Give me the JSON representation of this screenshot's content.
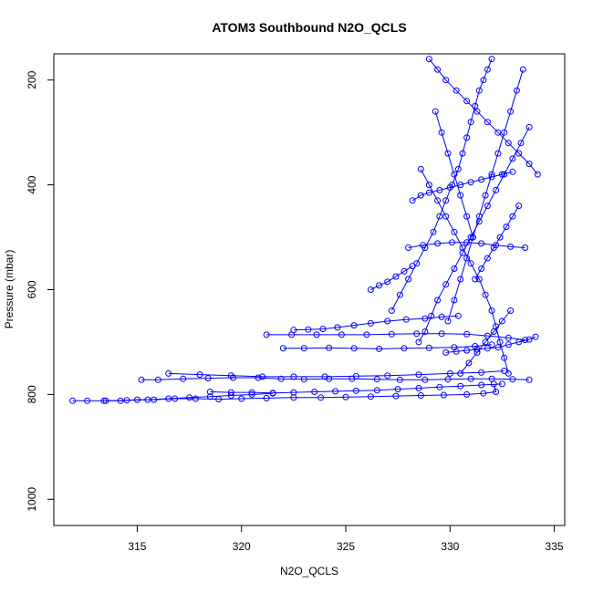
{
  "chart_data": {
    "type": "scatter",
    "title": "ATOM3 Southbound N2O_QCLS",
    "xlabel": "N2O_QCLS",
    "ylabel": "Pressure (mbar)",
    "xlim": [
      311.0,
      335.5
    ],
    "ylim": [
      1050,
      150
    ],
    "y_reversed": true,
    "x_ticks": [
      315,
      320,
      325,
      330,
      335
    ],
    "y_ticks": [
      200,
      400,
      600,
      800,
      1000
    ],
    "grid": false,
    "legend": "none",
    "marker": "open-circle",
    "connect_points": true,
    "color": "#0000ff",
    "series": [
      {
        "x": [
          311.9,
          312.6,
          313.4,
          314.2,
          315.0,
          315.8,
          316.8,
          317.8,
          318.9,
          320.0,
          321.2,
          322.5,
          323.8,
          325.0,
          326.2,
          327.4,
          328.6,
          329.7,
          330.8,
          331.6,
          332.2,
          332.1
        ],
        "y": [
          812,
          812,
          812,
          812,
          810,
          810,
          808,
          808,
          809,
          808,
          807,
          806,
          806,
          805,
          804,
          803,
          802,
          801,
          800,
          798,
          795,
          780
        ]
      },
      {
        "x": [
          315.2,
          316.0,
          317.2,
          318.4,
          319.6,
          320.8,
          321.9,
          323.0,
          324.2,
          325.3,
          326.5,
          327.6,
          328.8,
          329.9,
          331.0,
          332.0,
          333.0,
          333.8
        ],
        "y": [
          772,
          772,
          770,
          769,
          768,
          768,
          770,
          771,
          770,
          770,
          771,
          772,
          772,
          771,
          770,
          770,
          771,
          772
        ]
      },
      {
        "x": [
          316.5,
          318.0,
          319.5,
          321.0,
          322.5,
          324.0,
          325.5,
          327.0,
          328.5,
          330.0,
          331.5,
          332.6
        ],
        "y": [
          760,
          762,
          764,
          766,
          766,
          766,
          765,
          764,
          762,
          760,
          758,
          755
        ]
      },
      {
        "x": [
          322.0,
          323.0,
          324.2,
          325.4,
          326.6,
          327.8,
          329.0,
          330.2,
          331.2,
          332.0
        ],
        "y": [
          712,
          712,
          711,
          712,
          713,
          712,
          711,
          710,
          708,
          705
        ]
      },
      {
        "x": [
          321.2,
          322.4,
          323.6,
          324.8,
          326.0,
          327.2,
          328.4,
          329.6,
          330.8,
          331.8,
          332.8,
          333.6
        ],
        "y": [
          686,
          686,
          686,
          686,
          686,
          685,
          684,
          684,
          685,
          688,
          692,
          696
        ]
      },
      {
        "x": [
          322.5,
          323.2,
          323.9,
          324.6,
          325.4,
          326.2,
          327.0,
          327.9,
          328.8,
          329.6,
          330.4
        ],
        "y": [
          677,
          676,
          675,
          672,
          668,
          664,
          660,
          657,
          655,
          652,
          650
        ]
      },
      {
        "x": [
          318.5,
          319.5,
          320.5,
          321.5,
          322.5,
          323.5,
          324.5,
          325.5,
          326.5,
          327.5,
          328.5,
          329.5,
          330.5,
          331.5,
          332.5
        ],
        "y": [
          795,
          796,
          796,
          797,
          796,
          795,
          794,
          793,
          792,
          790,
          788,
          786,
          784,
          782,
          780
        ]
      },
      {
        "x": [
          313.5,
          314.5,
          315.5,
          316.5,
          317.5,
          318.5,
          319.5,
          320.5,
          321.5
        ],
        "y": [
          812,
          811,
          810,
          808,
          806,
          804,
          802,
          800,
          798
        ]
      },
      {
        "x": [
          327.2,
          327.6,
          328.0,
          328.4,
          328.8,
          329.2,
          329.5,
          329.8,
          330.1,
          330.4,
          330.6,
          330.8,
          331.0,
          331.2,
          331.4,
          331.6,
          331.8,
          332.0
        ],
        "y": [
          640,
          610,
          580,
          550,
          520,
          490,
          460,
          430,
          400,
          370,
          340,
          310,
          280,
          250,
          220,
          200,
          180,
          160
        ]
      },
      {
        "x": [
          328.5,
          328.8,
          329.1,
          329.4,
          329.8,
          330.2,
          330.6,
          331.0,
          331.4,
          331.8,
          332.2,
          332.6,
          333.0,
          333.4,
          333.8
        ],
        "y": [
          700,
          680,
          650,
          620,
          590,
          560,
          530,
          500,
          470,
          440,
          410,
          380,
          350,
          320,
          290
        ]
      },
      {
        "x": [
          332.8,
          332.6,
          332.4,
          332.2,
          332.0,
          331.7,
          331.4,
          331.0,
          330.6,
          330.2,
          329.8,
          329.4,
          329.0,
          328.6
        ],
        "y": [
          760,
          730,
          700,
          670,
          640,
          610,
          580,
          550,
          520,
          490,
          460,
          430,
          400,
          370
        ]
      },
      {
        "x": [
          329.0,
          329.4,
          329.8,
          330.3,
          330.8,
          331.3,
          331.8,
          332.3,
          332.8,
          333.3,
          333.8,
          334.2
        ],
        "y": [
          160,
          180,
          200,
          220,
          240,
          260,
          280,
          300,
          320,
          340,
          360,
          380
        ]
      },
      {
        "x": [
          333.5,
          333.2,
          332.9,
          332.6,
          332.3,
          332.0,
          331.7,
          331.4,
          331.1,
          330.8,
          330.5,
          330.2,
          329.9
        ],
        "y": [
          180,
          220,
          260,
          300,
          340,
          380,
          420,
          460,
          500,
          540,
          580,
          620,
          660
        ]
      },
      {
        "x": [
          328.2,
          328.6,
          329.0,
          329.5,
          330.0,
          330.5,
          331.0,
          331.5,
          332.0,
          332.5,
          333.0
        ],
        "y": [
          430,
          420,
          415,
          410,
          405,
          400,
          395,
          390,
          385,
          380,
          375
        ]
      },
      {
        "x": [
          328.0,
          328.7,
          329.4,
          330.1,
          330.8,
          331.5,
          332.2,
          332.9,
          333.6
        ],
        "y": [
          520,
          515,
          512,
          510,
          510,
          512,
          515,
          518,
          520
        ]
      },
      {
        "x": [
          326.2,
          326.6,
          327.0,
          327.4,
          327.8,
          328.2
        ],
        "y": [
          600,
          592,
          585,
          575,
          565,
          555
        ]
      },
      {
        "x": [
          329.8,
          330.3,
          330.8,
          331.3,
          331.8,
          332.3,
          332.8,
          333.3,
          333.8,
          334.1
        ],
        "y": [
          720,
          718,
          716,
          714,
          712,
          710,
          705,
          700,
          695,
          690
        ]
      },
      {
        "x": [
          330.5,
          330.9,
          331.3,
          331.7,
          332.1,
          332.5,
          332.9
        ],
        "y": [
          760,
          740,
          720,
          700,
          680,
          660,
          640
        ]
      },
      {
        "x": [
          331.2,
          331.5,
          331.8,
          332.1,
          332.4,
          332.7,
          333.0,
          333.3
        ],
        "y": [
          580,
          560,
          540,
          520,
          500,
          480,
          460,
          440
        ]
      },
      {
        "x": [
          329.3,
          329.6,
          329.9,
          330.2,
          330.5,
          330.8,
          331.1
        ],
        "y": [
          260,
          300,
          340,
          380,
          420,
          460,
          500
        ]
      }
    ]
  }
}
